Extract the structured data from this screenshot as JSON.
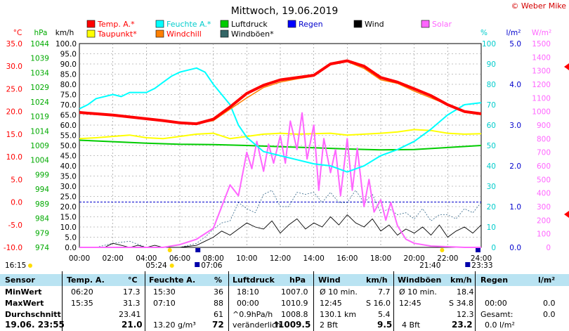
{
  "site_credit": "© Weber Mike",
  "chart_data": {
    "type": "line",
    "title": "Mittwoch, 19.06.2019",
    "x_ticks": [
      "00:00",
      "02:00",
      "04:00",
      "06:00",
      "08:00",
      "10:00",
      "12:00",
      "14:00",
      "16:00",
      "18:00",
      "20:00",
      "22:00",
      "24:00"
    ],
    "axes": {
      "temp": {
        "label": "°C",
        "ticks": [
          "35.0",
          "30.0",
          "25.0",
          "20.0",
          "15.0",
          "10.0",
          "5.0",
          "0.0",
          "-5.0",
          "-10.0"
        ],
        "color": "#ff0000",
        "range": [
          -10,
          35
        ]
      },
      "hpa": {
        "label": "hPa",
        "ticks": [
          "1044",
          "1039",
          "1034",
          "1029",
          "1024",
          "1019",
          "1014",
          "1009",
          "1004",
          "999",
          "994",
          "989",
          "984",
          "979",
          "974"
        ],
        "color": "#00aa00",
        "range": [
          974,
          1044
        ]
      },
      "kmh": {
        "label": "km/h",
        "ticks": [
          "100.0",
          "95.0",
          "90.0",
          "85.0",
          "80.0",
          "75.0",
          "70.0",
          "65.0",
          "60.0",
          "55.0",
          "50.0",
          "45.0",
          "40.0",
          "35.0",
          "30.0",
          "25.0",
          "20.0",
          "15.0",
          "10.0",
          "5.0",
          "0.0"
        ],
        "color": "#000000",
        "range": [
          0,
          100
        ]
      },
      "pct": {
        "label": "%",
        "ticks": [
          "100",
          "90",
          "80",
          "70",
          "60",
          "50",
          "40",
          "30",
          "20",
          "10",
          "0"
        ],
        "color": "#00cccc",
        "range": [
          0,
          100
        ]
      },
      "rain": {
        "label": "l/m²",
        "ticks": [
          "5.0",
          "4.0",
          "3.0",
          "2.0",
          "1.0",
          "0.0"
        ],
        "color": "#0000cc",
        "range": [
          0,
          5
        ]
      },
      "solar": {
        "label": "W/m²",
        "ticks": [
          "1500",
          "1400",
          "1300",
          "1200",
          "1100",
          "1000",
          "900",
          "800",
          "700",
          "600",
          "500",
          "400",
          "300",
          "200",
          "100",
          "0"
        ],
        "color": "#ff66ff",
        "range": [
          0,
          1500
        ]
      }
    },
    "legend": [
      {
        "name": "Temp. A.*",
        "color": "#ff0000"
      },
      {
        "name": "Feuchte A.*",
        "color": "#00ffff"
      },
      {
        "name": "Luftdruck",
        "color": "#00cc00"
      },
      {
        "name": "Regen",
        "color": "#0000ff"
      },
      {
        "name": "Wind",
        "color": "#000000"
      },
      {
        "name": "Solar",
        "color": "#ff66ff"
      },
      {
        "name": "Taupunkt*",
        "color": "#ffff00"
      },
      {
        "name": "Windchill",
        "color": "#ff8000"
      },
      {
        "name": "Windböen*",
        "color": "#336666"
      }
    ],
    "series": [
      {
        "name": "Temp. A.*",
        "axis": "temp",
        "color": "#ff0000",
        "x": [
          0,
          1,
          2,
          3,
          4,
          5,
          6,
          7,
          8,
          9,
          10,
          11,
          12,
          13,
          14,
          15,
          16,
          17,
          18,
          19,
          20,
          21,
          22,
          23,
          24
        ],
        "values": [
          19.8,
          19.5,
          19.2,
          18.8,
          18.4,
          18.0,
          17.5,
          17.3,
          18.3,
          21.0,
          24.0,
          25.8,
          27.0,
          27.5,
          28.0,
          30.5,
          31.2,
          30.0,
          27.5,
          26.5,
          25.0,
          23.5,
          21.5,
          20.0,
          19.5
        ]
      },
      {
        "name": "Feuchte A.*",
        "axis": "pct",
        "color": "#00ffff",
        "x": [
          0,
          0.5,
          1,
          2,
          2.5,
          3,
          4,
          4.5,
          5,
          5.5,
          6,
          6.5,
          7,
          7.5,
          8,
          9,
          9.5,
          10,
          11,
          12,
          13,
          14,
          15,
          16,
          17,
          18,
          19,
          20,
          21,
          22,
          23,
          24
        ],
        "values": [
          68,
          70,
          73,
          75,
          74,
          76,
          76,
          78,
          81,
          84,
          86,
          87,
          88,
          86,
          80,
          70,
          60,
          54,
          47,
          45,
          43,
          41,
          40,
          37,
          40,
          45,
          48,
          52,
          58,
          65,
          70,
          71
        ]
      },
      {
        "name": "Taupunkt*",
        "axis": "temp",
        "color": "#ffff00",
        "x": [
          0,
          1,
          2,
          3,
          4,
          5,
          6,
          7,
          8,
          9,
          10,
          11,
          12,
          13,
          14,
          15,
          16,
          17,
          18,
          19,
          20,
          21,
          22,
          23,
          24
        ],
        "values": [
          14.0,
          14.2,
          14.5,
          14.8,
          14.2,
          14.0,
          14.5,
          15.0,
          15.2,
          14.0,
          14.5,
          15.0,
          15.2,
          15.0,
          15.1,
          15.2,
          14.8,
          15.0,
          15.2,
          15.5,
          16.0,
          15.8,
          15.2,
          15.0,
          15.1
        ]
      },
      {
        "name": "Windchill",
        "axis": "temp",
        "color": "#ff8000",
        "x": [
          0,
          1,
          2,
          3,
          4,
          5,
          6,
          7,
          8,
          9,
          10,
          11,
          12,
          13,
          14,
          15,
          16,
          17,
          18,
          19,
          20,
          21,
          22,
          23,
          24
        ],
        "values": [
          19.8,
          19.5,
          19.2,
          18.8,
          18.4,
          18.0,
          17.5,
          17.3,
          18.0,
          20.5,
          23.0,
          25.3,
          26.5,
          27.2,
          27.8,
          30.3,
          31.0,
          29.5,
          27.0,
          26.2,
          24.5,
          23.0,
          21.5,
          19.8,
          19.3
        ]
      },
      {
        "name": "Luftdruck",
        "axis": "hpa",
        "color": "#00cc00",
        "x": [
          0,
          2,
          4,
          6,
          8,
          10,
          12,
          14,
          16,
          18,
          20,
          22,
          24
        ],
        "values": [
          1010.8,
          1010.3,
          1009.8,
          1009.4,
          1009.3,
          1009.0,
          1008.6,
          1008.2,
          1007.8,
          1007.5,
          1007.6,
          1008.3,
          1009.0
        ]
      },
      {
        "name": "Windböen*",
        "axis": "kmh",
        "color": "#336666",
        "x": [
          0,
          1,
          2,
          3,
          4,
          5,
          6,
          7,
          7.5,
          8,
          8.5,
          9,
          9.5,
          10,
          10.5,
          11,
          11.5,
          12,
          12.5,
          13,
          13.5,
          14,
          14.5,
          15,
          15.5,
          16,
          16.5,
          17,
          17.5,
          18,
          18.5,
          19,
          19.5,
          20,
          20.5,
          21,
          21.5,
          22,
          22.5,
          23,
          23.5,
          24
        ],
        "values": [
          0,
          0,
          2,
          3,
          0,
          0,
          0,
          2,
          5,
          9,
          12,
          13,
          22,
          19,
          17,
          26,
          28,
          20,
          20,
          27,
          26,
          27,
          22,
          27,
          22,
          22,
          28,
          22,
          26,
          17,
          19,
          16,
          17,
          14,
          19,
          13,
          16,
          16,
          14,
          19,
          17,
          22
        ]
      },
      {
        "name": "Wind",
        "axis": "kmh",
        "color": "#000000",
        "x": [
          0,
          1.5,
          2,
          2.5,
          3,
          3.5,
          4,
          4.5,
          5,
          5.5,
          6,
          7,
          7.5,
          8,
          8.5,
          9,
          9.5,
          10,
          10.5,
          11,
          11.5,
          12,
          12.5,
          13,
          13.5,
          14,
          14.5,
          15,
          15.5,
          16,
          16.5,
          17,
          17.5,
          18,
          18.5,
          19,
          19.5,
          20,
          20.5,
          21,
          21.5,
          22,
          22.5,
          23,
          23.5,
          24
        ],
        "values": [
          0,
          0,
          2,
          1,
          0,
          1,
          0,
          1,
          0,
          0,
          0,
          1,
          3,
          5,
          8,
          6,
          9,
          12,
          10,
          9,
          13,
          7,
          11,
          14,
          9,
          12,
          10,
          15,
          11,
          16,
          12,
          10,
          14,
          8,
          11,
          6,
          9,
          7,
          10,
          6,
          11,
          5,
          8,
          10,
          7,
          11
        ]
      },
      {
        "name": "Solar",
        "axis": "solar",
        "color": "#ff66ff",
        "x": [
          0,
          5,
          6,
          7,
          8,
          8.5,
          9,
          9.5,
          10,
          10.3,
          10.6,
          11,
          11.3,
          11.6,
          12,
          12.3,
          12.6,
          13,
          13.3,
          13.6,
          14,
          14.3,
          14.6,
          15,
          15.3,
          15.6,
          16,
          16.3,
          16.6,
          17,
          17.3,
          17.6,
          18,
          18.3,
          18.6,
          19,
          19.5,
          20,
          21,
          22,
          23,
          24
        ],
        "values": [
          0,
          0,
          20,
          60,
          140,
          300,
          460,
          380,
          700,
          580,
          780,
          560,
          760,
          620,
          820,
          620,
          930,
          720,
          990,
          650,
          900,
          420,
          800,
          550,
          720,
          380,
          800,
          420,
          730,
          300,
          500,
          260,
          350,
          200,
          330,
          160,
          60,
          30,
          10,
          5,
          0,
          0
        ]
      }
    ],
    "markers": {
      "sunrise": "05:24",
      "moonset": "07:06",
      "sunset": "21:40",
      "moonrise": "23:33",
      "left_time": "16:15"
    }
  },
  "stats": {
    "headers": [
      "Sensor",
      "Temp. A.",
      "°C",
      "Feuchte A.",
      "%",
      "Luftdruck",
      "hPa",
      "Wind",
      "km/h",
      "Windböen",
      "km/h",
      "Regen",
      "l/m²"
    ],
    "min_row": {
      "label": "MinWert",
      "temp_time": "06:20",
      "temp": "17.3",
      "hum_time": "15:30",
      "hum": "36",
      "pres_time": "18:10",
      "pres": "1007.0",
      "wind_label": "Ø 10 min.",
      "wind": "7.7",
      "gust_label": "Ø 10 min.",
      "gust": "18.4"
    },
    "max_row": {
      "label": "MaxWert",
      "temp_time": "15:35",
      "temp": "31.3",
      "hum_time": "07:10",
      "hum": "88",
      "pres_time": "00:00",
      "pres": "1010.9",
      "wind_time": "12:45",
      "wind": "S 16.0",
      "gust_time": "12:45",
      "gust": "S 34.8",
      "rain_time": "00:00",
      "rain": "0.0"
    },
    "avg_row": {
      "label": "Durchschnitt",
      "temp": "23.41",
      "hum": "61",
      "pres_trend": "^0.9hPa/h",
      "pres": "1008.8",
      "wind_dist": "130.1 km",
      "wind": "5.4",
      "gust": "12.3",
      "rain_label": "Gesamt:",
      "rain": "0.0"
    },
    "now_row": {
      "label": "19.06. 23:55",
      "temp": "21.0",
      "abs_hum": "13.20 g/m³",
      "hum": "72",
      "pres_trend": "veränderlich",
      "pres": "1009.5",
      "wind_bft": "2 Bft",
      "wind": "9.5",
      "gust_bft": "4 Bft",
      "gust": "23.2",
      "rain": "0.0 l/m²"
    }
  }
}
